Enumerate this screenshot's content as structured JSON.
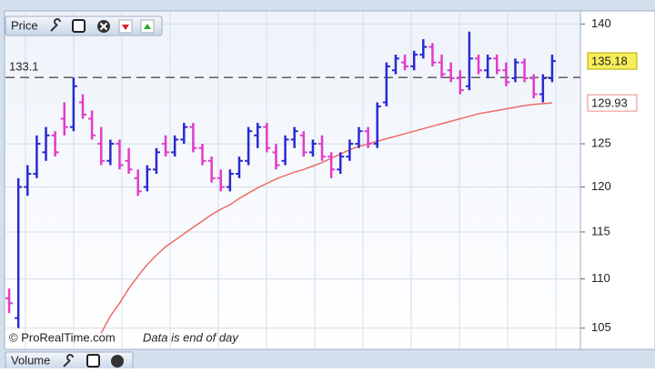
{
  "chart_data": {
    "type": "ohlc",
    "panel_title": "Price",
    "lower_panel_title": "Volume",
    "credit": "© ProRealTime.com",
    "note": "Data is end of day",
    "log_y": true,
    "grid": true,
    "ylim": [
      103,
      141.5
    ],
    "yticks": [
      105,
      110,
      115,
      120,
      125,
      140
    ],
    "hline": 133.1,
    "last_price": 135.18,
    "last_average": 129.93,
    "up_color": "#2a2ad0",
    "down_color": "#e23cc8",
    "average_color": "#f06a6a",
    "open": [
      108,
      106,
      120,
      121.5,
      124,
      126,
      128,
      127,
      130,
      128,
      125,
      123,
      125,
      123,
      121,
      120,
      122,
      125,
      124,
      125.5,
      127,
      124.5,
      123,
      121,
      120,
      121.5,
      123,
      126,
      127,
      124,
      123,
      125.5,
      126,
      124,
      125,
      123.5,
      122,
      123.5,
      125,
      126.5,
      125,
      130,
      134,
      135,
      134.5,
      136,
      137,
      135,
      134,
      133,
      132,
      135.5,
      134,
      135.5,
      134,
      133,
      135,
      133,
      131,
      133
    ],
    "high": [
      109,
      121,
      122.5,
      126,
      127,
      126.5,
      130,
      133.1,
      131,
      129,
      127,
      125.5,
      125.5,
      124.5,
      122,
      122.5,
      124.5,
      126,
      126,
      127.5,
      127.5,
      125,
      123.5,
      122,
      122,
      123.5,
      127,
      127.5,
      127.5,
      125,
      126,
      127,
      126.5,
      125.5,
      126,
      124,
      124,
      125.5,
      127,
      127,
      130,
      135,
      136,
      136,
      136.5,
      138,
      137.5,
      136,
      135,
      134,
      139,
      136,
      136,
      136,
      135,
      135.5,
      135.5,
      133.5,
      133.5,
      136
    ],
    "low": [
      106.5,
      105,
      119,
      121,
      123,
      123.5,
      126,
      126.5,
      128,
      125.5,
      122.5,
      122.5,
      122,
      121.5,
      119,
      119.5,
      121.5,
      123.5,
      123.5,
      125,
      124,
      122.5,
      120.5,
      119.5,
      119.5,
      121,
      122.5,
      124.5,
      124,
      122,
      122.5,
      124.5,
      123.5,
      123.5,
      123,
      121,
      121.5,
      123,
      124.5,
      124.5,
      124.5,
      129.5,
      133.5,
      134,
      134,
      135.5,
      134.5,
      133,
      132.5,
      131,
      131.5,
      133.5,
      133,
      133.5,
      132,
      132.5,
      132.5,
      130.5,
      130,
      132.5
    ],
    "close": [
      107.5,
      120,
      121.5,
      125,
      126,
      124,
      127,
      132,
      128.5,
      126,
      123,
      125,
      122.5,
      122,
      119.5,
      122,
      124,
      124,
      125.5,
      127,
      124.5,
      123,
      121,
      120,
      121.5,
      123,
      126.5,
      127,
      124.5,
      122.5,
      125.5,
      126.5,
      124,
      125,
      123.5,
      122,
      123.5,
      125,
      126.5,
      125,
      129.5,
      134.5,
      135.5,
      134.5,
      136,
      137,
      135,
      133.5,
      133,
      131.5,
      135.5,
      134,
      135.5,
      134,
      132.5,
      135,
      133,
      131,
      133,
      135.18
    ],
    "average": [
      null,
      null,
      null,
      null,
      null,
      null,
      null,
      null,
      null,
      null,
      104.5,
      106.2,
      107.5,
      109.0,
      110.3,
      111.5,
      112.5,
      113.4,
      114.1,
      114.8,
      115.5,
      116.2,
      116.9,
      117.5,
      118.0,
      118.7,
      119.3,
      119.9,
      120.4,
      120.9,
      121.3,
      121.7,
      122.0,
      122.4,
      122.8,
      123.3,
      123.8,
      124.3,
      124.7,
      125.0,
      125.3,
      125.6,
      125.9,
      126.2,
      126.5,
      126.8,
      127.1,
      127.4,
      127.7,
      128.0,
      128.3,
      128.6,
      128.8,
      129.0,
      129.2,
      129.4,
      129.6,
      129.75,
      129.85,
      129.93
    ]
  }
}
